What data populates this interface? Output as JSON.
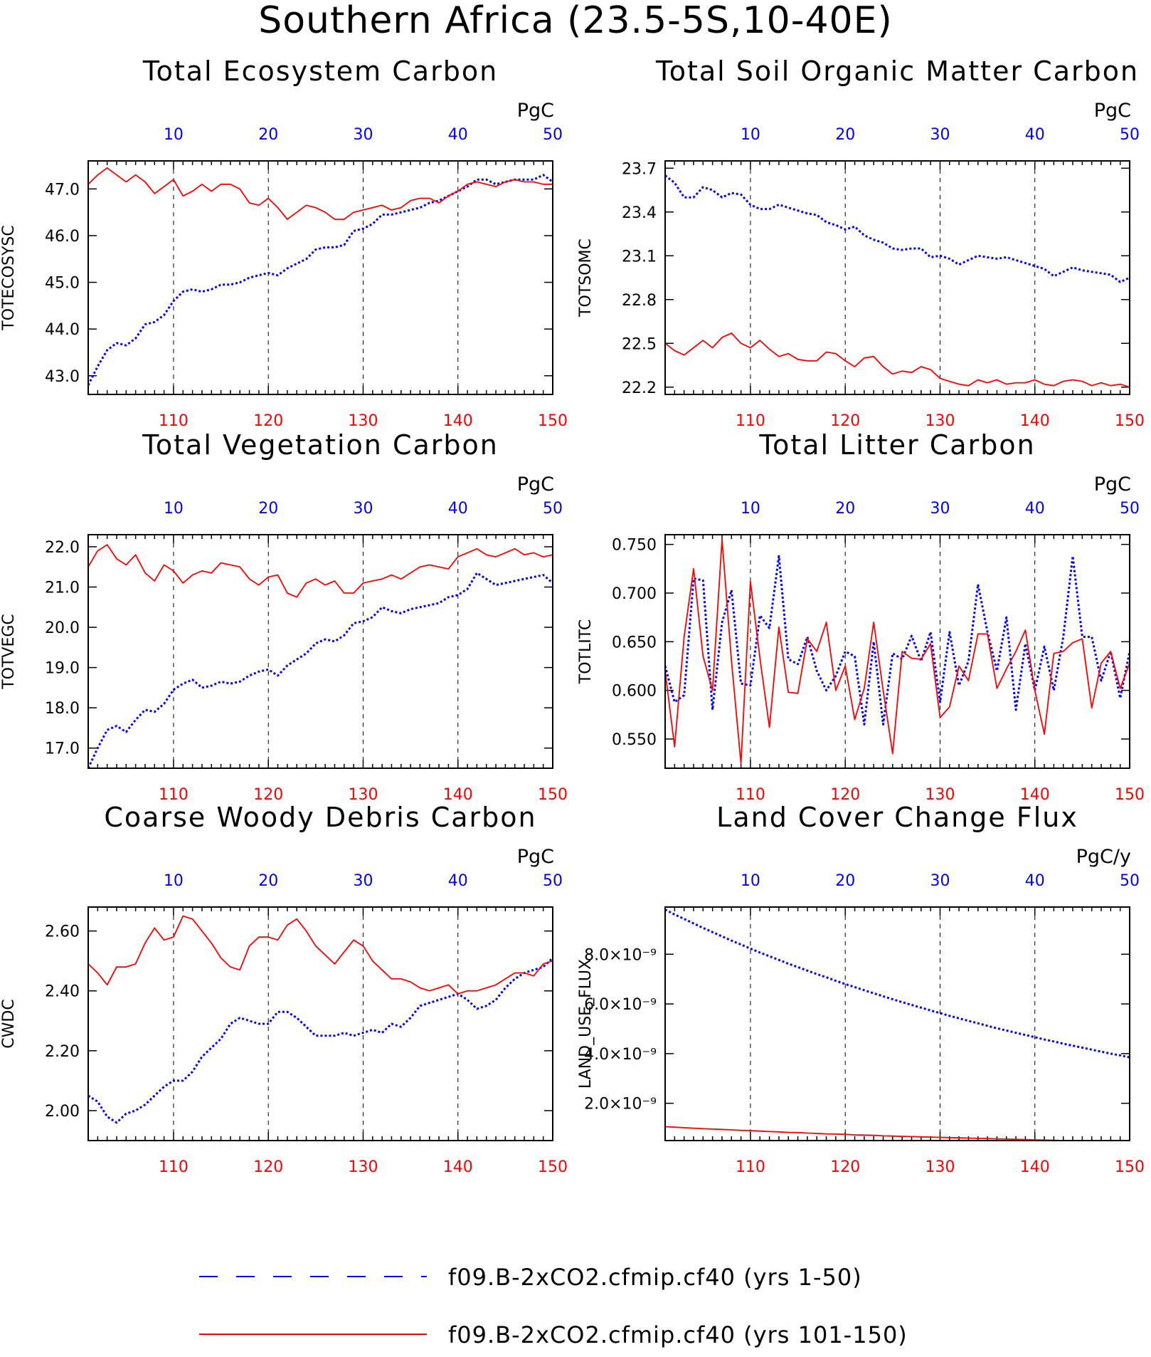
{
  "figure": {
    "title": "Southern Africa (23.5-5S,10-40E)",
    "legend": [
      {
        "label": "f09.B-2xCO2.cfmip.cf40 (yrs 1-50)",
        "color": "#0000ff",
        "style": "dashed"
      },
      {
        "label": "f09.B-2xCO2.cfmip.cf40 (yrs 101-150)",
        "color": "#ff0000",
        "style": "solid"
      }
    ]
  },
  "chart_data": [
    {
      "type": "line",
      "title": "Total Ecosystem Carbon",
      "ylabel": "TOTECOSYSC",
      "unit": "PgC",
      "ylim": [
        42.6,
        47.6
      ],
      "yticks": [
        "43.0",
        "44.0",
        "45.0",
        "46.0",
        "47.0"
      ],
      "top_x_ticks": [
        "10",
        "20",
        "30",
        "40",
        "50"
      ],
      "bottom_x_ticks": [
        "110",
        "120",
        "130",
        "140",
        "150"
      ],
      "series": [
        {
          "name": "f09.B-2xCO2.cfmip.cf40 (yrs 1-50)",
          "color": "#0000ff",
          "style": "dotted",
          "values": [
            42.8,
            43.2,
            43.55,
            43.7,
            43.65,
            43.8,
            44.1,
            44.15,
            44.3,
            44.6,
            44.8,
            44.85,
            44.8,
            44.85,
            44.95,
            44.95,
            45.0,
            45.1,
            45.15,
            45.2,
            45.15,
            45.3,
            45.4,
            45.5,
            45.7,
            45.75,
            45.75,
            45.8,
            46.1,
            46.15,
            46.25,
            46.45,
            46.45,
            46.5,
            46.55,
            46.6,
            46.7,
            46.75,
            46.85,
            46.95,
            47.05,
            47.2,
            47.2,
            47.1,
            47.15,
            47.2,
            47.2,
            47.2,
            47.3,
            47.15
          ]
        },
        {
          "name": "f09.B-2xCO2.cfmip.cf40 (yrs 101-150)",
          "color": "#ff0000",
          "style": "solid",
          "values": [
            47.1,
            47.3,
            47.45,
            47.3,
            47.15,
            47.3,
            47.15,
            46.9,
            47.05,
            47.2,
            46.85,
            46.95,
            47.1,
            46.95,
            47.1,
            47.1,
            47.0,
            46.7,
            46.65,
            46.8,
            46.6,
            46.35,
            46.5,
            46.65,
            46.6,
            46.5,
            46.35,
            46.35,
            46.5,
            46.55,
            46.6,
            46.65,
            46.55,
            46.6,
            46.75,
            46.8,
            46.8,
            46.7,
            46.85,
            46.95,
            47.1,
            47.15,
            47.1,
            47.05,
            47.15,
            47.2,
            47.15,
            47.15,
            47.1,
            47.1
          ]
        }
      ]
    },
    {
      "type": "line",
      "title": "Total Soil Organic Matter Carbon",
      "ylabel": "TOTSOMC",
      "unit": "PgC",
      "ylim": [
        22.15,
        23.75
      ],
      "yticks": [
        "22.2",
        "22.5",
        "22.8",
        "23.1",
        "23.4",
        "23.7"
      ],
      "top_x_ticks": [
        "10",
        "20",
        "30",
        "40",
        "50"
      ],
      "bottom_x_ticks": [
        "110",
        "120",
        "130",
        "140",
        "150"
      ],
      "series": [
        {
          "name": "f09.B-2xCO2.cfmip.cf40 (yrs 1-50)",
          "color": "#0000ff",
          "style": "dotted",
          "values": [
            23.65,
            23.6,
            23.5,
            23.5,
            23.57,
            23.55,
            23.5,
            23.53,
            23.52,
            23.45,
            23.42,
            23.42,
            23.45,
            23.43,
            23.41,
            23.39,
            23.38,
            23.33,
            23.31,
            23.28,
            23.3,
            23.24,
            23.21,
            23.19,
            23.15,
            23.14,
            23.15,
            23.15,
            23.09,
            23.1,
            23.08,
            23.04,
            23.07,
            23.1,
            23.09,
            23.08,
            23.09,
            23.07,
            23.05,
            23.03,
            23.01,
            22.96,
            22.99,
            23.02,
            23.0,
            22.99,
            22.98,
            22.97,
            22.92,
            22.95
          ]
        },
        {
          "name": "f09.B-2xCO2.cfmip.cf40 (yrs 101-150)",
          "color": "#ff0000",
          "style": "solid",
          "values": [
            22.5,
            22.45,
            22.42,
            22.47,
            22.52,
            22.47,
            22.54,
            22.57,
            22.5,
            22.47,
            22.52,
            22.46,
            22.41,
            22.43,
            22.39,
            22.38,
            22.38,
            22.44,
            22.43,
            22.38,
            22.34,
            22.4,
            22.41,
            22.34,
            22.29,
            22.31,
            22.3,
            22.34,
            22.32,
            22.26,
            22.24,
            22.22,
            22.21,
            22.25,
            22.23,
            22.25,
            22.22,
            22.23,
            22.23,
            22.25,
            22.22,
            22.21,
            22.24,
            22.25,
            22.24,
            22.21,
            22.23,
            22.21,
            22.22,
            22.2
          ]
        }
      ]
    },
    {
      "type": "line",
      "title": "Total Vegetation Carbon",
      "ylabel": "TOTVEGC",
      "unit": "PgC",
      "ylim": [
        16.5,
        22.3
      ],
      "yticks": [
        "17.0",
        "18.0",
        "19.0",
        "20.0",
        "21.0",
        "22.0"
      ],
      "top_x_ticks": [
        "10",
        "20",
        "30",
        "40",
        "50"
      ],
      "bottom_x_ticks": [
        "110",
        "120",
        "130",
        "140",
        "150"
      ],
      "series": [
        {
          "name": "f09.B-2xCO2.cfmip.cf40 (yrs 1-50)",
          "color": "#0000ff",
          "style": "dotted",
          "values": [
            16.5,
            17.0,
            17.45,
            17.55,
            17.4,
            17.7,
            17.95,
            17.9,
            18.1,
            18.45,
            18.6,
            18.7,
            18.5,
            18.55,
            18.65,
            18.6,
            18.65,
            18.8,
            18.9,
            18.95,
            18.8,
            19.05,
            19.2,
            19.35,
            19.6,
            19.7,
            19.65,
            19.8,
            20.1,
            20.15,
            20.25,
            20.5,
            20.4,
            20.35,
            20.45,
            20.5,
            20.55,
            20.6,
            20.75,
            20.8,
            20.95,
            21.35,
            21.2,
            21.05,
            21.1,
            21.15,
            21.2,
            21.25,
            21.3,
            21.1
          ]
        },
        {
          "name": "f09.B-2xCO2.cfmip.cf40 (yrs 101-150)",
          "color": "#ff0000",
          "style": "solid",
          "values": [
            21.5,
            21.9,
            22.05,
            21.7,
            21.55,
            21.8,
            21.35,
            21.15,
            21.55,
            21.4,
            21.1,
            21.3,
            21.4,
            21.35,
            21.6,
            21.55,
            21.5,
            21.2,
            21.05,
            21.25,
            21.3,
            20.85,
            20.75,
            21.1,
            21.2,
            21.05,
            21.15,
            20.85,
            20.85,
            21.1,
            21.15,
            21.2,
            21.3,
            21.2,
            21.35,
            21.5,
            21.55,
            21.5,
            21.45,
            21.75,
            21.85,
            21.95,
            21.8,
            21.75,
            21.85,
            21.95,
            21.8,
            21.85,
            21.75,
            21.8
          ]
        }
      ]
    },
    {
      "type": "line",
      "title": "Total Litter Carbon",
      "ylabel": "TOTLITC",
      "unit": "PgC",
      "ylim": [
        0.52,
        0.76
      ],
      "yticks": [
        "0.550",
        "0.600",
        "0.650",
        "0.700",
        "0.750"
      ],
      "top_x_ticks": [
        "10",
        "20",
        "30",
        "40",
        "50"
      ],
      "bottom_x_ticks": [
        "110",
        "120",
        "130",
        "140",
        "150"
      ],
      "series": [
        {
          "name": "f09.B-2xCO2.cfmip.cf40 (yrs 1-50)",
          "color": "#0000ff",
          "style": "dotted",
          "values": [
            0.625,
            0.588,
            0.595,
            0.715,
            0.713,
            0.58,
            0.67,
            0.703,
            0.607,
            0.605,
            0.677,
            0.664,
            0.738,
            0.632,
            0.627,
            0.655,
            0.62,
            0.6,
            0.615,
            0.64,
            0.635,
            0.565,
            0.65,
            0.565,
            0.638,
            0.632,
            0.656,
            0.63,
            0.66,
            0.588,
            0.66,
            0.605,
            0.63,
            0.709,
            0.66,
            0.62,
            0.675,
            0.58,
            0.648,
            0.6,
            0.645,
            0.6,
            0.655,
            0.738,
            0.655,
            0.655,
            0.61,
            0.64,
            0.592,
            0.64
          ]
        },
        {
          "name": "f09.B-2xCO2.cfmip.cf40 (yrs 101-150)",
          "color": "#ff0000",
          "style": "solid",
          "values": [
            0.62,
            0.542,
            0.655,
            0.725,
            0.635,
            0.6,
            0.755,
            0.63,
            0.525,
            0.712,
            0.633,
            0.562,
            0.665,
            0.598,
            0.597,
            0.653,
            0.64,
            0.67,
            0.6,
            0.625,
            0.57,
            0.602,
            0.67,
            0.6,
            0.535,
            0.64,
            0.633,
            0.632,
            0.648,
            0.572,
            0.583,
            0.625,
            0.61,
            0.658,
            0.658,
            0.602,
            0.622,
            0.64,
            0.662,
            0.6,
            0.555,
            0.638,
            0.64,
            0.649,
            0.653,
            0.582,
            0.628,
            0.64,
            0.602,
            0.628
          ]
        }
      ]
    },
    {
      "type": "line",
      "title": "Coarse Woody Debris Carbon",
      "ylabel": "CWDC",
      "unit": "PgC",
      "ylim": [
        1.9,
        2.68
      ],
      "yticks": [
        "2.00",
        "2.20",
        "2.40",
        "2.60"
      ],
      "top_x_ticks": [
        "10",
        "20",
        "30",
        "40",
        "50"
      ],
      "bottom_x_ticks": [
        "110",
        "120",
        "130",
        "140",
        "150"
      ],
      "series": [
        {
          "name": "f09.B-2xCO2.cfmip.cf40 (yrs 1-50)",
          "color": "#0000ff",
          "style": "dotted",
          "values": [
            2.05,
            2.03,
            1.98,
            1.96,
            1.99,
            2.0,
            2.02,
            2.05,
            2.08,
            2.1,
            2.1,
            2.13,
            2.18,
            2.21,
            2.24,
            2.29,
            2.31,
            2.3,
            2.29,
            2.29,
            2.33,
            2.33,
            2.31,
            2.28,
            2.25,
            2.25,
            2.25,
            2.26,
            2.25,
            2.26,
            2.27,
            2.26,
            2.29,
            2.28,
            2.31,
            2.35,
            2.36,
            2.37,
            2.38,
            2.39,
            2.37,
            2.34,
            2.35,
            2.37,
            2.41,
            2.44,
            2.46,
            2.47,
            2.48,
            2.51
          ]
        },
        {
          "name": "f09.B-2xCO2.cfmip.cf40 (yrs 101-150)",
          "color": "#ff0000",
          "style": "solid",
          "values": [
            2.49,
            2.46,
            2.42,
            2.48,
            2.48,
            2.49,
            2.56,
            2.61,
            2.57,
            2.58,
            2.65,
            2.64,
            2.6,
            2.56,
            2.51,
            2.48,
            2.47,
            2.55,
            2.58,
            2.58,
            2.57,
            2.62,
            2.64,
            2.6,
            2.55,
            2.52,
            2.49,
            2.53,
            2.57,
            2.55,
            2.5,
            2.47,
            2.44,
            2.44,
            2.43,
            2.41,
            2.4,
            2.41,
            2.42,
            2.39,
            2.4,
            2.4,
            2.41,
            2.42,
            2.44,
            2.46,
            2.46,
            2.45,
            2.49,
            2.5
          ]
        }
      ]
    },
    {
      "type": "line",
      "title": "Land Cover Change Flux",
      "ylabel": "LAND_USE_FLUX",
      "unit": "PgC/y",
      "ylim": [
        0.5,
        9.9
      ],
      "y_scale_note": "values in units of 1e-9",
      "yticks": [
        "2.0×10⁻⁹",
        "4.0×10⁻⁹",
        "6.0×10⁻⁹",
        "8.0×10⁻⁹"
      ],
      "top_x_ticks": [
        "10",
        "20",
        "30",
        "40",
        "50"
      ],
      "bottom_x_ticks": [
        "110",
        "120",
        "130",
        "140",
        "150"
      ],
      "series": [
        {
          "name": "f09.B-2xCO2.cfmip.cf40 (yrs 1-50)",
          "color": "#0000ff",
          "style": "dotted",
          "values": [
            9.8,
            9.6,
            9.42,
            9.24,
            9.06,
            8.89,
            8.72,
            8.55,
            8.39,
            8.23,
            8.07,
            7.92,
            7.77,
            7.62,
            7.48,
            7.34,
            7.2,
            7.07,
            6.93,
            6.8,
            6.68,
            6.55,
            6.43,
            6.31,
            6.19,
            6.07,
            5.96,
            5.85,
            5.74,
            5.63,
            5.52,
            5.42,
            5.32,
            5.22,
            5.12,
            5.02,
            4.93,
            4.84,
            4.75,
            4.66,
            4.57,
            4.49,
            4.4,
            4.32,
            4.24,
            4.16,
            4.08,
            4.0,
            3.93,
            3.85
          ]
        },
        {
          "name": "f09.B-2xCO2.cfmip.cf40 (yrs 101-150)",
          "color": "#ff0000",
          "style": "solid",
          "values": [
            1.06,
            1.04,
            1.02,
            1.0,
            0.98,
            0.96,
            0.95,
            0.93,
            0.91,
            0.9,
            0.88,
            0.86,
            0.85,
            0.83,
            0.82,
            0.8,
            0.79,
            0.77,
            0.76,
            0.75,
            0.73,
            0.72,
            0.71,
            0.69,
            0.68,
            0.67,
            0.66,
            0.65,
            0.64,
            0.63,
            0.62,
            0.61,
            0.6,
            0.59,
            0.58,
            0.57,
            0.56,
            0.55,
            0.54,
            0.53,
            0.52,
            0.51,
            0.5,
            0.5,
            0.5,
            0.5,
            0.5,
            0.5,
            0.5,
            0.5
          ]
        }
      ]
    }
  ]
}
